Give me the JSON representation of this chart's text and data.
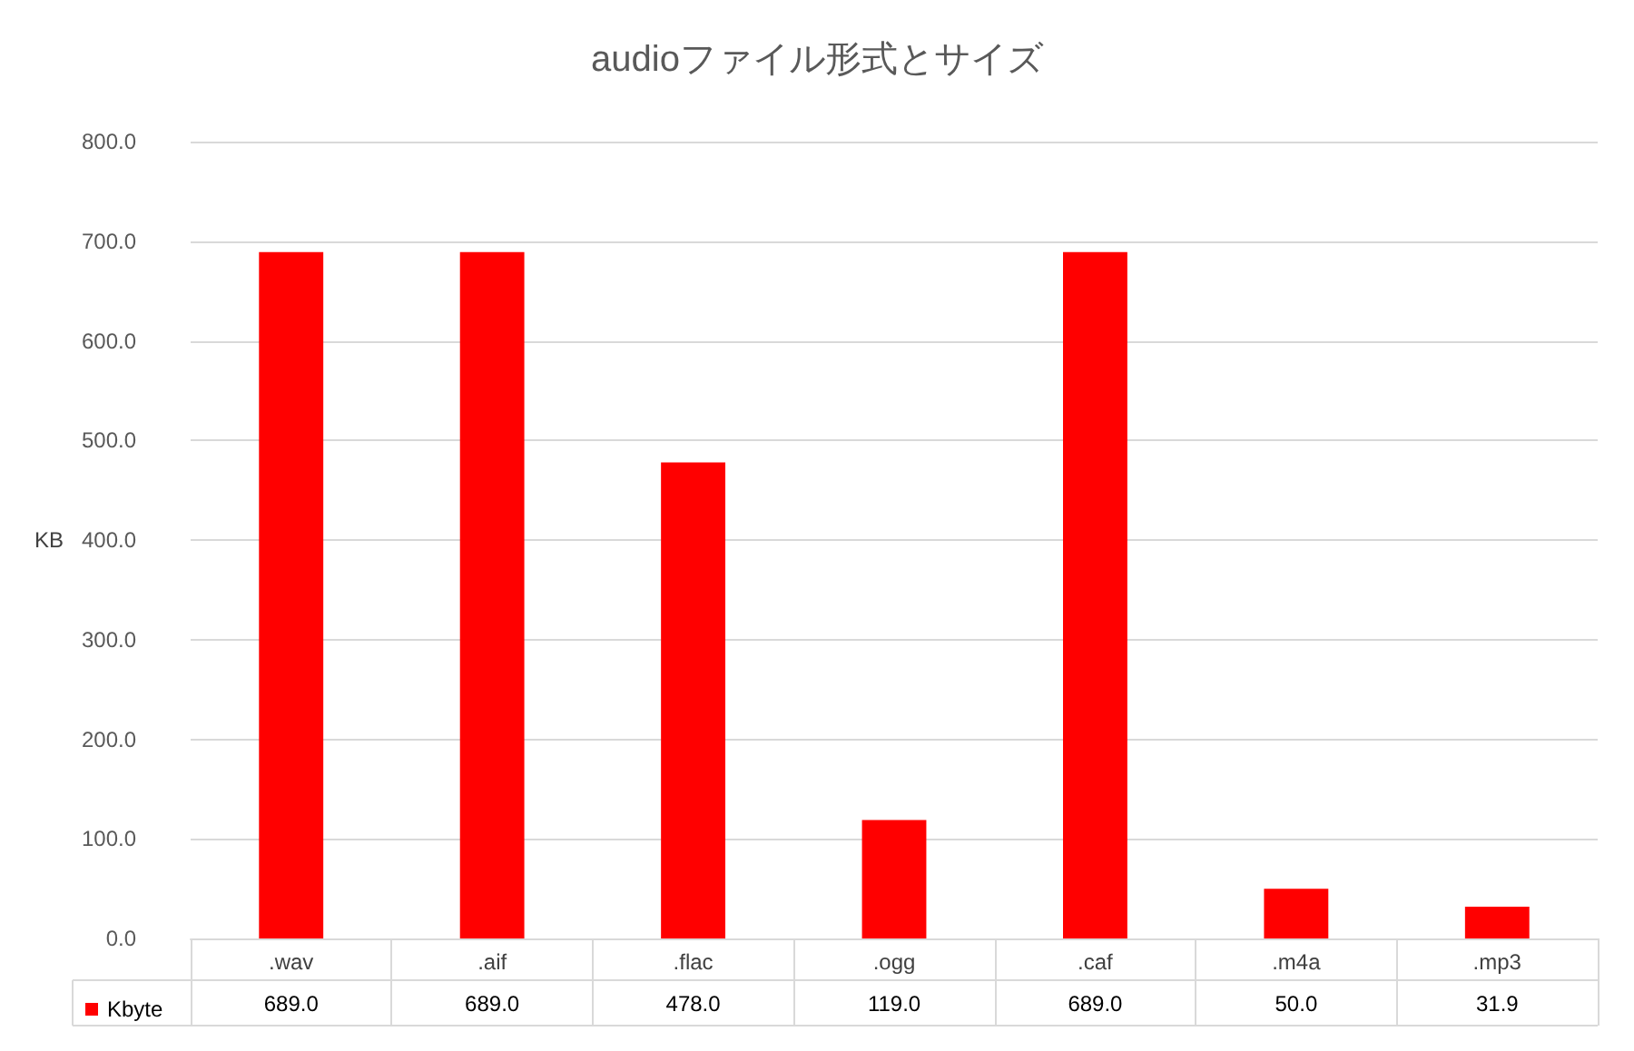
{
  "chart_data": {
    "type": "bar",
    "title": "audioファイル形式とサイズ",
    "ylabel": "KB",
    "categories": [
      ".wav",
      ".aif",
      ".flac",
      ".ogg",
      ".caf",
      ".m4a",
      ".mp3"
    ],
    "series": [
      {
        "name": "Kbyte",
        "color": "#ff0000",
        "values": [
          689.0,
          689.0,
          478.0,
          119.0,
          689.0,
          50.0,
          31.9
        ],
        "value_labels": [
          "689.0",
          "689.0",
          "478.0",
          "119.0",
          "689.0",
          "50.0",
          "31.9"
        ]
      }
    ],
    "ylim": [
      0,
      800
    ],
    "yticks": [
      {
        "value": 0,
        "label": "0.0"
      },
      {
        "value": 100,
        "label": "100.0"
      },
      {
        "value": 200,
        "label": "200.0"
      },
      {
        "value": 300,
        "label": "300.0"
      },
      {
        "value": 400,
        "label": "400.0"
      },
      {
        "value": 500,
        "label": "500.0"
      },
      {
        "value": 600,
        "label": "600.0"
      },
      {
        "value": 700,
        "label": "700.0"
      },
      {
        "value": 800,
        "label": "800.0"
      }
    ],
    "grid": "y",
    "legend": "bottom left"
  }
}
